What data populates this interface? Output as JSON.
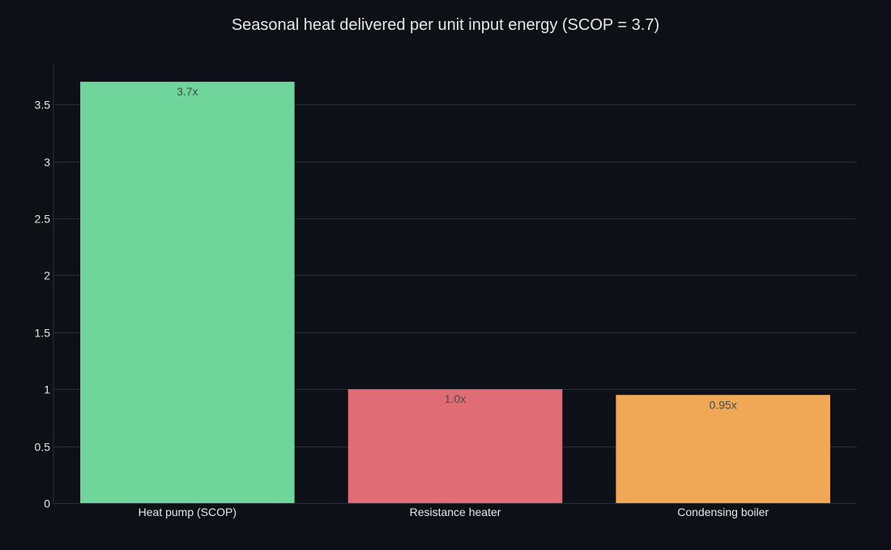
{
  "chart_data": {
    "type": "bar",
    "title": "Seasonal heat delivered per unit input energy (SCOP = 3.7)",
    "xlabel": "",
    "ylabel": "",
    "categories": [
      "Heat pump (SCOP)",
      "Resistance heater",
      "Condensing boiler"
    ],
    "values": [
      3.7,
      1.0,
      0.95
    ],
    "data_labels": [
      "3.7x",
      "1.0x",
      "0.95x"
    ],
    "colors": [
      "#6fd59a",
      "#e06c75",
      "#f0a857"
    ],
    "ylim": [
      0,
      3.85
    ],
    "yticks": [
      0,
      0.5,
      1,
      1.5,
      2,
      2.5,
      3,
      3.5
    ],
    "ytick_labels": [
      "0",
      "0.5",
      "1",
      "1.5",
      "2",
      "2.5",
      "3",
      "3.5"
    ],
    "grid": true,
    "legend": false
  },
  "theme": {
    "background": "#0d1117",
    "grid_color": "#2a2f37",
    "text_color": "#e6e6e6"
  }
}
